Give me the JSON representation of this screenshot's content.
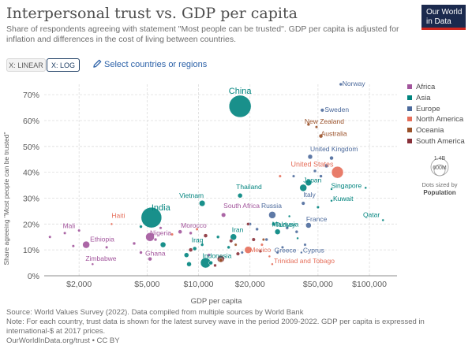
{
  "header": {
    "title": "Interpersonal trust vs. GDP per capita",
    "subtitle": "Share of respondents agreeing with statement \"Most people can be trusted\". GDP per capita is adjusted for inflation and differences in the cost of living between countries.",
    "logo_line1": "Our World",
    "logo_line2": "in Data"
  },
  "controls": {
    "linear_label": "X: LINEAR",
    "log_label": "X: LOG",
    "select_label": "Select countries or regions"
  },
  "colors": {
    "Africa": "#a2559c",
    "Asia": "#00847e",
    "Europe": "#4c6a9c",
    "North America": "#e56e5a",
    "Oceania": "#9a5129",
    "South America": "#883039",
    "grid": "#dddddd",
    "axis": "#666666",
    "label": "#5b5b5b"
  },
  "legend": [
    {
      "name": "Africa"
    },
    {
      "name": "Asia"
    },
    {
      "name": "Europe"
    },
    {
      "name": "North America"
    },
    {
      "name": "Oceania"
    },
    {
      "name": "South America"
    }
  ],
  "size_legend": {
    "big": "1.4B",
    "small": "600M",
    "caption1": "Dots sized by",
    "caption2": "Population"
  },
  "chart_data": {
    "type": "scatter",
    "title": "Interpersonal trust vs. GDP per capita",
    "xlabel": "GDP per capita",
    "ylabel": "Share agreeing \"Most people can be trusted\"",
    "x_scale": "log",
    "xlim": [
      1250,
      145000
    ],
    "ylim": [
      0,
      74
    ],
    "x_ticks": [
      {
        "value": 2000,
        "label": "$2,000"
      },
      {
        "value": 5000,
        "label": "$5,000"
      },
      {
        "value": 10000,
        "label": "$10,000"
      },
      {
        "value": 20000,
        "label": "$20,000"
      },
      {
        "value": 50000,
        "label": "$50,000"
      },
      {
        "value": 100000,
        "label": "$100,000"
      }
    ],
    "y_ticks": [
      {
        "value": 0,
        "label": "0%"
      },
      {
        "value": 10,
        "label": "10%"
      },
      {
        "value": 20,
        "label": "20%"
      },
      {
        "value": 30,
        "label": "30%"
      },
      {
        "value": 40,
        "label": "40%"
      },
      {
        "value": 50,
        "label": "50%"
      },
      {
        "value": 60,
        "label": "60%"
      },
      {
        "value": 70,
        "label": "70%"
      }
    ],
    "grid": true,
    "legend_position": "right",
    "points": [
      {
        "name": "China",
        "x": 17500,
        "y": 65.5,
        "r": 14,
        "continent": "Asia",
        "label": "China"
      },
      {
        "name": "India",
        "x": 5300,
        "y": 22.5,
        "r": 13,
        "continent": "Asia",
        "label": "India"
      },
      {
        "name": "Norway",
        "x": 68000,
        "y": 74,
        "r": 2,
        "continent": "Europe",
        "label": "Norway"
      },
      {
        "name": "Sweden",
        "x": 53000,
        "y": 64,
        "r": 2.3,
        "continent": "Europe",
        "label": "Sweden"
      },
      {
        "name": "New Zealand",
        "x": 44000,
        "y": 58.5,
        "r": 2,
        "continent": "Oceania",
        "label": "New Zealand"
      },
      {
        "name": "Australia",
        "x": 52000,
        "y": 54,
        "r": 2.5,
        "continent": "Oceania",
        "label": "Australia"
      },
      {
        "name": "United Kingdom",
        "x": 45000,
        "y": 46,
        "r": 3,
        "continent": "Europe",
        "label": "United Kingdom"
      },
      {
        "name": "United States",
        "x": 65000,
        "y": 40,
        "r": 7.5,
        "continent": "North America",
        "label": "United States"
      },
      {
        "name": "Japan",
        "x": 41000,
        "y": 34,
        "r": 4.5,
        "continent": "Asia",
        "label": "Japan"
      },
      {
        "name": "Italy",
        "x": 41000,
        "y": 28,
        "r": 2.3,
        "continent": "Europe",
        "label": "Italy"
      },
      {
        "name": "Kuwait",
        "x": 60000,
        "y": 29,
        "r": 1.5,
        "continent": "Asia",
        "label": "Kuwait"
      },
      {
        "name": "Singapore",
        "x": 95000,
        "y": 34,
        "r": 1.5,
        "continent": "Asia",
        "label": "Singapore"
      },
      {
        "name": "Qatar",
        "x": 120000,
        "y": 21.5,
        "r": 1.5,
        "continent": "Asia",
        "label": "Qatar"
      },
      {
        "name": "Thailand",
        "x": 17500,
        "y": 31,
        "r": 3,
        "continent": "Asia",
        "label": "Thailand"
      },
      {
        "name": "Vietnam",
        "x": 10500,
        "y": 28,
        "r": 3.8,
        "continent": "Asia",
        "label": "Vietnam"
      },
      {
        "name": "South Africa",
        "x": 14000,
        "y": 23.5,
        "r": 2.8,
        "continent": "Africa",
        "label": "South Africa"
      },
      {
        "name": "Russia",
        "x": 27000,
        "y": 23.5,
        "r": 4.5,
        "continent": "Europe",
        "label": "Russia"
      },
      {
        "name": "Malaysia",
        "x": 27500,
        "y": 20,
        "r": 2.3,
        "continent": "Asia",
        "label": "Malaysia"
      },
      {
        "name": "France",
        "x": 44000,
        "y": 19.5,
        "r": 3.5,
        "continent": "Europe",
        "label": "France"
      },
      {
        "name": "Turkey",
        "x": 29000,
        "y": 17,
        "r": 3.5,
        "continent": "Asia",
        "label": "Turkey"
      },
      {
        "name": "Greece",
        "x": 29000,
        "y": 9,
        "r": 1.8,
        "continent": "Europe",
        "label": "Greece"
      },
      {
        "name": "Cyprus",
        "x": 40000,
        "y": 9,
        "r": 1.5,
        "continent": "Europe",
        "label": "Cyprus"
      },
      {
        "name": "Trinidad and Tobago",
        "x": 27000,
        "y": 4.5,
        "r": 1.5,
        "continent": "North America",
        "label": "Trinidad and Tobago"
      },
      {
        "name": "Mexico",
        "x": 19500,
        "y": 10,
        "r": 4.5,
        "continent": "North America",
        "label": "Mexico"
      },
      {
        "name": "Iran",
        "x": 16000,
        "y": 15,
        "r": 4,
        "continent": "Asia",
        "label": "Iran"
      },
      {
        "name": "Indonesia",
        "x": 11000,
        "y": 5,
        "r": 6.5,
        "continent": "Asia",
        "label": "Indonesia"
      },
      {
        "name": "Iraq",
        "x": 9500,
        "y": 10.5,
        "r": 2.5,
        "continent": "Asia",
        "label": "Iraq"
      },
      {
        "name": "Morocco",
        "x": 7800,
        "y": 17,
        "r": 2.5,
        "continent": "Africa",
        "label": "Morocco"
      },
      {
        "name": "Nigeria",
        "x": 5200,
        "y": 15,
        "r": 5.5,
        "continent": "Africa",
        "label": "Nigeria"
      },
      {
        "name": "Ghana",
        "x": 5200,
        "y": 6.5,
        "r": 2.5,
        "continent": "Africa",
        "label": "Ghana"
      },
      {
        "name": "Ethiopia",
        "x": 2200,
        "y": 12,
        "r": 4.5,
        "continent": "Africa",
        "label": "Ethiopia"
      },
      {
        "name": "Zimbabwe",
        "x": 2400,
        "y": 4.5,
        "r": 1.5,
        "continent": "Africa",
        "label": "Zimbabwe"
      },
      {
        "name": "Mali",
        "x": 2000,
        "y": 17.5,
        "r": 1.8,
        "continent": "Africa",
        "label": "Mali"
      },
      {
        "name": "Haiti",
        "x": 3100,
        "y": 20,
        "r": 1.5,
        "continent": "North America",
        "label": "Haiti"
      },
      {
        "continent": "Africa",
        "x": 1350,
        "y": 15,
        "r": 1.8
      },
      {
        "continent": "Africa",
        "x": 1650,
        "y": 16.5,
        "r": 1.8
      },
      {
        "continent": "Africa",
        "x": 1850,
        "y": 11.5,
        "r": 1.8
      },
      {
        "continent": "Africa",
        "x": 2900,
        "y": 11,
        "r": 1.8
      },
      {
        "continent": "Africa",
        "x": 4200,
        "y": 12.5,
        "r": 2
      },
      {
        "continent": "Africa",
        "x": 4600,
        "y": 9,
        "r": 2
      },
      {
        "continent": "Africa",
        "x": 5600,
        "y": 14,
        "r": 2
      },
      {
        "continent": "Africa",
        "x": 6000,
        "y": 18.5,
        "r": 1.8
      },
      {
        "continent": "Africa",
        "x": 9000,
        "y": 16.5,
        "r": 2
      },
      {
        "continent": "Africa",
        "x": 11500,
        "y": 8,
        "r": 2
      },
      {
        "continent": "Asia",
        "x": 6200,
        "y": 12,
        "r": 3.5
      },
      {
        "continent": "Asia",
        "x": 4600,
        "y": 19,
        "r": 2
      },
      {
        "continent": "Asia",
        "x": 8500,
        "y": 8,
        "r": 3
      },
      {
        "continent": "Asia",
        "x": 8800,
        "y": 4.5,
        "r": 3
      },
      {
        "continent": "Asia",
        "x": 11800,
        "y": 5,
        "r": 2.5
      },
      {
        "continent": "Asia",
        "x": 13000,
        "y": 15,
        "r": 2
      },
      {
        "continent": "Asia",
        "x": 15000,
        "y": 11,
        "r": 2
      },
      {
        "continent": "Asia",
        "x": 10500,
        "y": 12,
        "r": 2
      },
      {
        "continent": "Asia",
        "x": 44000,
        "y": 36,
        "r": 4
      },
      {
        "continent": "Asia",
        "x": 50000,
        "y": 26.5,
        "r": 1.8
      },
      {
        "continent": "Asia",
        "x": 34000,
        "y": 23,
        "r": 1.5
      },
      {
        "continent": "Asia",
        "x": 38000,
        "y": 14.5,
        "r": 1.5
      },
      {
        "continent": "Asia",
        "x": 60000,
        "y": 33.5,
        "r": 1.5
      },
      {
        "continent": "Europe",
        "x": 60000,
        "y": 45.5,
        "r": 2.5
      },
      {
        "continent": "Europe",
        "x": 56000,
        "y": 42.5,
        "r": 2.5
      },
      {
        "continent": "Europe",
        "x": 36000,
        "y": 38.5,
        "r": 1.8
      },
      {
        "continent": "Europe",
        "x": 48000,
        "y": 40.5,
        "r": 2
      },
      {
        "continent": "Europe",
        "x": 52000,
        "y": 38.5,
        "r": 2
      },
      {
        "continent": "Europe",
        "x": 22000,
        "y": 18,
        "r": 2
      },
      {
        "continent": "Europe",
        "x": 25000,
        "y": 14,
        "r": 2
      },
      {
        "continent": "Europe",
        "x": 31000,
        "y": 11,
        "r": 1.8
      },
      {
        "continent": "Europe",
        "x": 33000,
        "y": 18.5,
        "r": 2
      },
      {
        "continent": "Europe",
        "x": 37500,
        "y": 17,
        "r": 2
      },
      {
        "continent": "Europe",
        "x": 42000,
        "y": 12,
        "r": 1.8
      },
      {
        "continent": "Europe",
        "x": 20000,
        "y": 20,
        "r": 2
      },
      {
        "continent": "Europe",
        "x": 18000,
        "y": 9,
        "r": 1.8
      },
      {
        "continent": "Oceania",
        "x": 49000,
        "y": 57.5,
        "r": 1.8
      },
      {
        "continent": "Oceania",
        "x": 13500,
        "y": 6,
        "r": 2.5
      },
      {
        "continent": "Oceania",
        "x": 16500,
        "y": 12,
        "r": 1.8
      },
      {
        "continent": "Oceania",
        "x": 24000,
        "y": 14,
        "r": 1.8
      },
      {
        "continent": "South America",
        "x": 9000,
        "y": 10,
        "r": 2.5
      },
      {
        "continent": "South America",
        "x": 11000,
        "y": 15.5,
        "r": 2.5
      },
      {
        "continent": "South America",
        "x": 13500,
        "y": 6.5,
        "r": 4.5
      },
      {
        "continent": "South America",
        "x": 15500,
        "y": 13.5,
        "r": 2.3
      },
      {
        "continent": "South America",
        "x": 17000,
        "y": 8.5,
        "r": 2.3
      },
      {
        "continent": "South America",
        "x": 19500,
        "y": 20,
        "r": 2
      },
      {
        "continent": "South America",
        "x": 21000,
        "y": 14,
        "r": 2.3
      },
      {
        "continent": "South America",
        "x": 12500,
        "y": 4,
        "r": 2
      },
      {
        "continent": "South America",
        "x": 23000,
        "y": 9.5,
        "r": 2
      },
      {
        "continent": "North America",
        "x": 7000,
        "y": 16,
        "r": 1.8
      },
      {
        "continent": "North America",
        "x": 9800,
        "y": 18,
        "r": 1.8
      },
      {
        "continent": "North America",
        "x": 23500,
        "y": 12,
        "r": 1.8
      },
      {
        "continent": "North America",
        "x": 26000,
        "y": 7.5,
        "r": 1.5
      },
      {
        "continent": "North America",
        "x": 30000,
        "y": 38.5,
        "r": 1.8
      }
    ]
  },
  "footer": {
    "source": "Source: World Values Survey (2022). Data compiled from multiple sources by World Bank",
    "note": "Note: For each country, trust data is shown for the latest survey wave in the period 2009-2022. GDP per capita is expressed in international-$ at 2017 prices.",
    "url": "OurWorldInData.org/trust • CC BY"
  }
}
